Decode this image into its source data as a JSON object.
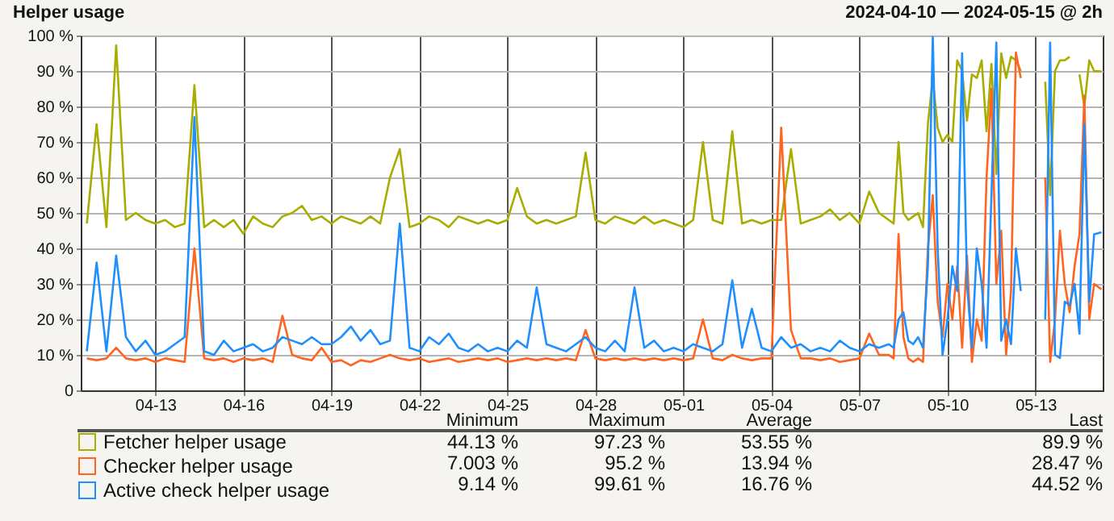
{
  "chart_data": {
    "type": "line",
    "title": "Helper usage",
    "subtitle": "2024-04-10 — 2024-05-15 @ 2h",
    "x": [
      "2024-04-10T16:00",
      "2024-04-11T00:00",
      "2024-04-11T08:00",
      "2024-04-11T16:00",
      "2024-04-12T00:00",
      "2024-04-12T08:00",
      "2024-04-12T16:00",
      "2024-04-13T00:00",
      "2024-04-13T08:00",
      "2024-04-13T16:00",
      "2024-04-14T00:00",
      "2024-04-14T08:00",
      "2024-04-14T16:00",
      "2024-04-15T00:00",
      "2024-04-15T08:00",
      "2024-04-15T16:00",
      "2024-04-16T00:00",
      "2024-04-16T08:00",
      "2024-04-16T16:00",
      "2024-04-17T00:00",
      "2024-04-17T08:00",
      "2024-04-17T16:00",
      "2024-04-18T00:00",
      "2024-04-18T08:00",
      "2024-04-18T16:00",
      "2024-04-19T00:00",
      "2024-04-19T08:00",
      "2024-04-19T16:00",
      "2024-04-20T00:00",
      "2024-04-20T08:00",
      "2024-04-20T16:00",
      "2024-04-21T00:00",
      "2024-04-21T08:00",
      "2024-04-21T16:00",
      "2024-04-22T00:00",
      "2024-04-22T08:00",
      "2024-04-22T16:00",
      "2024-04-23T00:00",
      "2024-04-23T08:00",
      "2024-04-23T16:00",
      "2024-04-24T00:00",
      "2024-04-24T08:00",
      "2024-04-24T16:00",
      "2024-04-25T00:00",
      "2024-04-25T08:00",
      "2024-04-25T16:00",
      "2024-04-26T00:00",
      "2024-04-26T08:00",
      "2024-04-26T16:00",
      "2024-04-27T00:00",
      "2024-04-27T08:00",
      "2024-04-27T16:00",
      "2024-04-28T00:00",
      "2024-04-28T08:00",
      "2024-04-28T16:00",
      "2024-04-29T00:00",
      "2024-04-29T08:00",
      "2024-04-29T16:00",
      "2024-04-30T00:00",
      "2024-04-30T08:00",
      "2024-04-30T16:00",
      "2024-05-01T00:00",
      "2024-05-01T08:00",
      "2024-05-01T16:00",
      "2024-05-02T00:00",
      "2024-05-02T08:00",
      "2024-05-02T16:00",
      "2024-05-03T00:00",
      "2024-05-03T08:00",
      "2024-05-03T16:00",
      "2024-05-04T00:00",
      "2024-05-04T08:00",
      "2024-05-04T16:00",
      "2024-05-05T00:00",
      "2024-05-05T08:00",
      "2024-05-05T16:00",
      "2024-05-06T00:00",
      "2024-05-06T08:00",
      "2024-05-06T16:00",
      "2024-05-07T00:00",
      "2024-05-07T08:00",
      "2024-05-07T16:00",
      "2024-05-08T00:00",
      "2024-05-08T04:00",
      "2024-05-08T08:00",
      "2024-05-08T12:00",
      "2024-05-08T16:00",
      "2024-05-08T20:00",
      "2024-05-09T00:00",
      "2024-05-09T04:00",
      "2024-05-09T08:00",
      "2024-05-09T12:00",
      "2024-05-09T16:00",
      "2024-05-09T20:00",
      "2024-05-10T00:00",
      "2024-05-10T04:00",
      "2024-05-10T08:00",
      "2024-05-10T12:00",
      "2024-05-10T16:00",
      "2024-05-10T20:00",
      "2024-05-11T00:00",
      "2024-05-11T04:00",
      "2024-05-11T08:00",
      "2024-05-11T12:00",
      "2024-05-11T16:00",
      "2024-05-11T20:00",
      "2024-05-12T00:00",
      "2024-05-12T04:00",
      "2024-05-12T08:00",
      "2024-05-12T12:00",
      "2024-05-12T16:00",
      "2024-05-12T20:00",
      "2024-05-13T00:00",
      "2024-05-13T04:00",
      "2024-05-13T08:00",
      "2024-05-13T12:00",
      "2024-05-13T16:00",
      "2024-05-13T20:00",
      "2024-05-14T00:00",
      "2024-05-14T04:00",
      "2024-05-14T08:00",
      "2024-05-14T12:00",
      "2024-05-14T16:00",
      "2024-05-14T20:00",
      "2024-05-15T00:00",
      "2024-05-15T06:00"
    ],
    "series": [
      {
        "name": "Fetcher helper usage",
        "color": "#a9ad00",
        "values": [
          47,
          75,
          46,
          97.23,
          48,
          50,
          48,
          47,
          48,
          46,
          47,
          86,
          46,
          48,
          46,
          48,
          44.13,
          49,
          47,
          46,
          49,
          50,
          52,
          48,
          49,
          47,
          49,
          48,
          47,
          49,
          47,
          60,
          68,
          46,
          47,
          49,
          48,
          46,
          49,
          48,
          47,
          48,
          47,
          48,
          57,
          49,
          47,
          48,
          47,
          48,
          49,
          67,
          48,
          47,
          49,
          48,
          47,
          49,
          47,
          48,
          47,
          46,
          48,
          70,
          48,
          47,
          73,
          47,
          48,
          47,
          48,
          48,
          68,
          47,
          48,
          49,
          51,
          48,
          50,
          47,
          56,
          50,
          48,
          47,
          70,
          50,
          48,
          49,
          50,
          46,
          75,
          88,
          74,
          70,
          72,
          70,
          93,
          90,
          76,
          89,
          88,
          93,
          73,
          92,
          61,
          95,
          88,
          94,
          93,
          90,
          null,
          null,
          null,
          null,
          87,
          55,
          90,
          93,
          93,
          94,
          null,
          89,
          80,
          93,
          90,
          89.9
        ]
      },
      {
        "name": "Checker helper usage",
        "color": "#ff6420",
        "values": [
          9,
          8.5,
          9,
          12,
          9,
          8.5,
          9,
          8,
          9,
          8.5,
          8,
          40,
          9,
          8.5,
          9,
          8,
          9,
          8.5,
          9,
          8,
          21,
          10,
          9,
          8.5,
          12,
          8,
          8.5,
          7.003,
          8.5,
          8,
          9,
          10,
          9,
          8.5,
          9,
          8,
          8.5,
          9,
          8,
          8.5,
          9,
          8.5,
          9,
          8,
          8.5,
          9,
          8.5,
          9,
          8.5,
          9,
          8.5,
          17,
          9,
          8.5,
          9,
          8.5,
          9,
          8.5,
          9,
          8.5,
          9,
          8.5,
          9,
          20,
          9,
          8.5,
          10,
          9,
          8.5,
          9,
          9,
          74,
          17,
          9,
          9,
          8.5,
          9,
          8,
          8.5,
          9,
          16,
          10,
          10,
          9,
          44,
          15,
          9,
          8,
          9,
          8,
          40,
          55,
          25,
          15,
          30,
          20,
          35,
          12,
          38,
          8,
          20,
          14,
          60,
          85,
          30,
          45,
          10,
          28,
          95.2,
          88,
          null,
          null,
          null,
          null,
          60,
          8,
          20,
          45,
          30,
          22,
          35,
          44,
          83,
          20,
          30,
          28.47
        ]
      },
      {
        "name": "Active check helper usage",
        "color": "#1f8fff",
        "values": [
          11,
          36,
          11,
          38,
          15,
          11,
          14,
          10,
          11,
          13,
          15,
          77,
          11,
          10,
          14,
          11,
          12,
          13,
          11,
          12,
          15,
          14,
          13,
          15,
          13,
          13,
          15,
          18,
          14,
          17,
          13,
          14,
          47,
          12,
          11,
          15,
          13,
          16,
          12,
          11,
          13,
          11,
          12,
          11,
          14,
          12,
          29,
          13,
          12,
          11,
          13,
          15,
          12,
          11,
          14,
          11,
          29,
          12,
          14,
          11,
          12,
          11,
          13,
          12,
          11,
          13,
          31,
          12,
          23,
          12,
          11,
          15,
          12,
          13,
          11,
          12,
          11,
          14,
          12,
          11,
          13,
          12,
          13,
          12,
          20,
          22,
          14,
          13,
          15,
          12,
          35,
          99.61,
          40,
          10,
          20,
          35,
          28,
          95,
          30,
          12,
          40,
          30,
          12,
          55,
          98,
          14,
          20,
          13,
          40,
          28,
          null,
          null,
          null,
          null,
          20,
          98,
          10,
          9.14,
          25,
          24,
          30,
          16,
          75,
          25,
          44,
          44.52
        ]
      }
    ],
    "xlim": [
      "2024-04-10T11:00",
      "2024-05-15T07:00"
    ],
    "xticks": [
      {
        "value": "2024-04-13",
        "label": "04-13"
      },
      {
        "value": "2024-04-16",
        "label": "04-16"
      },
      {
        "value": "2024-04-19",
        "label": "04-19"
      },
      {
        "value": "2024-04-22",
        "label": "04-22"
      },
      {
        "value": "2024-04-25",
        "label": "04-25"
      },
      {
        "value": "2024-04-28",
        "label": "04-28"
      },
      {
        "value": "2024-05-01",
        "label": "05-01"
      },
      {
        "value": "2024-05-04",
        "label": "05-04"
      },
      {
        "value": "2024-05-07",
        "label": "05-07"
      },
      {
        "value": "2024-05-10",
        "label": "05-10"
      },
      {
        "value": "2024-05-13",
        "label": "05-13"
      }
    ],
    "ylim": [
      0,
      100
    ],
    "yticks": [
      0,
      {
        "value": 10,
        "label": "10 %"
      },
      {
        "value": 20,
        "label": "20 %"
      },
      {
        "value": 30,
        "label": "30 %"
      },
      {
        "value": 40,
        "label": "40 %"
      },
      {
        "value": 50,
        "label": "50 %"
      },
      {
        "value": 60,
        "label": "60 %"
      },
      {
        "value": 70,
        "label": "70 %"
      },
      {
        "value": 80,
        "label": "80 %"
      },
      {
        "value": 90,
        "label": "90 %"
      },
      {
        "value": 100,
        "label": "100 %"
      }
    ],
    "grid": true,
    "legend": "bottom",
    "annotations": [
      "Minimum",
      "Maximum",
      "Average",
      "Last",
      "44.13 %",
      "97.23 %",
      "53.55 %",
      "89.9 %",
      "7.003 %",
      "95.2 %",
      "13.94 %",
      "28.47 %",
      "9.14 %",
      "99.61 %",
      "16.76 %",
      "44.52 %"
    ]
  }
}
